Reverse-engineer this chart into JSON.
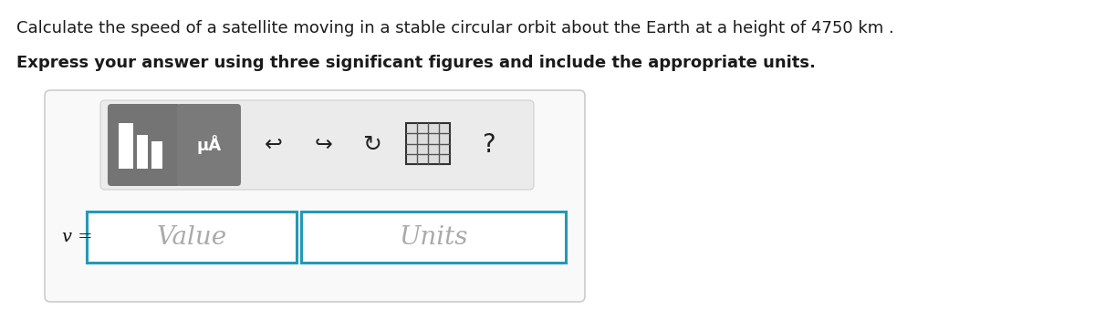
{
  "line1": "Calculate the speed of a satellite moving in a stable circular orbit about the Earth at a height of 4750 km .",
  "line2": "Express your answer using three significant figures and include the appropriate units.",
  "label": "v =",
  "placeholder_value": "Value",
  "placeholder_units": "Units",
  "bg_color": "#ffffff",
  "line1_fontsize": 13.0,
  "line2_fontsize": 13.0,
  "input_border_color": "#2499b5",
  "placeholder_color": "#aaaaaa",
  "outer_box_edge": "#cccccc",
  "outer_box_face": "#f9f9f9",
  "toolbar_face": "#ebebeb",
  "toolbar_edge": "#d0d0d0",
  "icon_dark": "#6b6b6b",
  "icon_text": "#222222"
}
